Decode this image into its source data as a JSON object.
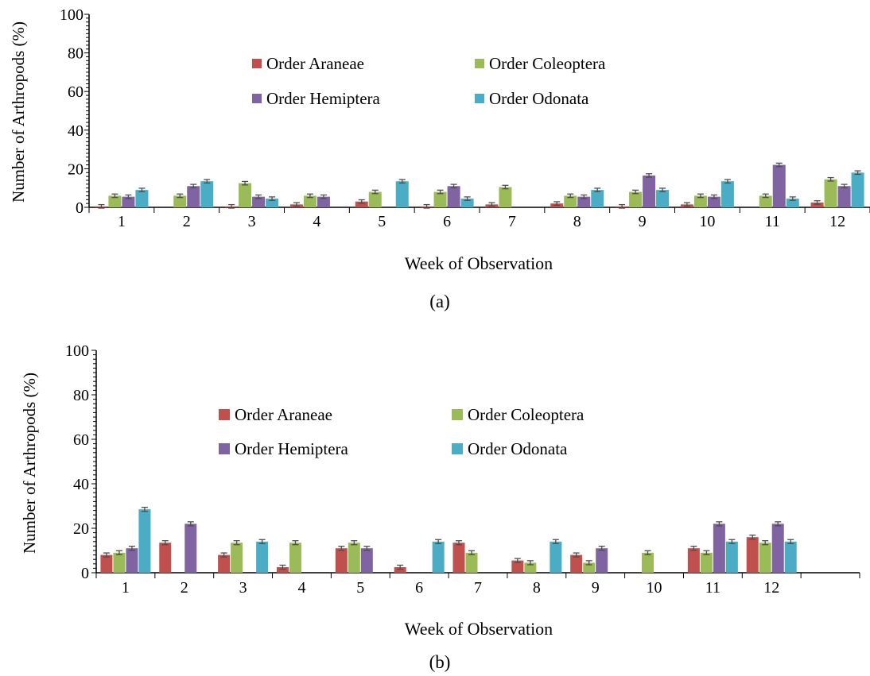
{
  "colors": {
    "Order Araneae": "#c0504d",
    "Order Coleoptera": "#9bbb59",
    "Order Hemiptera": "#8064a2",
    "Order Odonata": "#4bacc6",
    "error_bar": "#4d4d4d",
    "axis": "#000000"
  },
  "chart_data": [
    {
      "type": "bar",
      "panel_label": "(a)",
      "xlabel": "Week of Observation",
      "ylabel": "Number of Arthropods (%)",
      "ylim": [
        0,
        100
      ],
      "yticks": [
        0,
        20,
        40,
        60,
        80,
        100
      ],
      "categories": [
        "1",
        "2",
        "3",
        "4",
        "5",
        "6",
        "7",
        "8",
        "9",
        "10",
        "11",
        "12"
      ],
      "legend": [
        "Order Araneae",
        "Order Coleoptera",
        "Order Hemiptera",
        "Order Odonata"
      ],
      "legend_placement": "upper-center, two columns",
      "grid": false,
      "error_bars": true,
      "series": [
        {
          "name": "Order Araneae",
          "values": [
            0.5,
            0,
            0.5,
            1.5,
            3,
            0.5,
            1.5,
            2,
            0.5,
            1.5,
            0,
            2.5
          ]
        },
        {
          "name": "Order Coleoptera",
          "values": [
            6,
            6,
            12.5,
            6,
            8,
            8,
            10.5,
            6,
            8,
            6,
            6,
            14.5
          ]
        },
        {
          "name": "Order Hemiptera",
          "values": [
            5.5,
            11,
            5.5,
            5.5,
            0,
            11,
            0,
            5.5,
            16.5,
            5.5,
            22,
            11
          ]
        },
        {
          "name": "Order Odonata",
          "values": [
            9,
            13.5,
            4.5,
            0,
            13.5,
            4.5,
            0,
            9,
            9,
            13.5,
            4.5,
            18
          ]
        }
      ]
    },
    {
      "type": "bar",
      "panel_label": "(b)",
      "xlabel": "Week of Observation",
      "ylabel": "Number of Arthropods (%)",
      "ylim": [
        0,
        100
      ],
      "yticks": [
        0,
        20,
        40,
        60,
        80,
        100
      ],
      "categories": [
        "1",
        "2",
        "3",
        "4",
        "5",
        "6",
        "7",
        "8",
        "9",
        "10",
        "11",
        "12"
      ],
      "legend": [
        "Order Araneae",
        "Order Coleoptera",
        "Order Hemiptera",
        "Order Odonata"
      ],
      "legend_placement": "upper-center, two columns",
      "grid": false,
      "error_bars": true,
      "series": [
        {
          "name": "Order Araneae",
          "values": [
            8,
            13.5,
            8,
            2.5,
            11,
            2.5,
            13.5,
            5.5,
            8,
            0,
            11,
            16
          ]
        },
        {
          "name": "Order Coleoptera",
          "values": [
            9,
            0,
            13.5,
            13.5,
            13.5,
            0,
            9,
            4.5,
            4.5,
            9,
            9,
            13.5
          ]
        },
        {
          "name": "Order Hemiptera",
          "values": [
            11,
            22,
            0,
            0,
            11,
            0,
            0,
            0,
            11,
            0,
            22,
            22
          ]
        },
        {
          "name": "Order Odonata",
          "values": [
            28.5,
            0,
            14,
            0,
            0,
            14,
            0,
            14,
            0,
            0,
            14,
            14
          ]
        }
      ]
    }
  ]
}
